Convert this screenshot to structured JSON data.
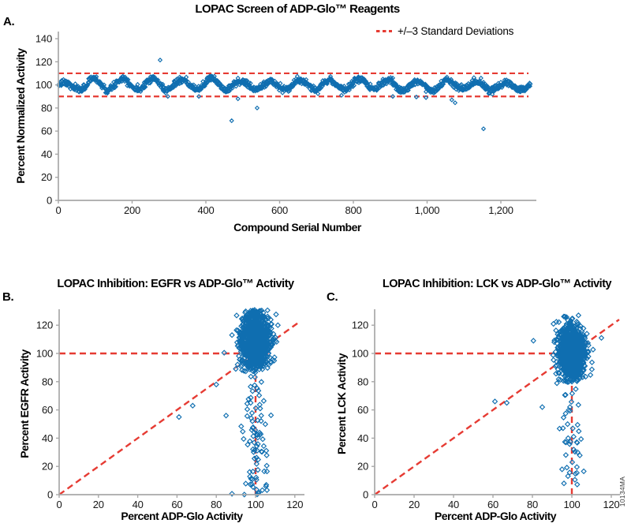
{
  "watermark": "10134MA",
  "colors": {
    "marker_stroke": "#0f6eb0",
    "reference_dash": "#e63b33",
    "axis_line": "#a8a8a8",
    "text": "#111111"
  },
  "chart_data": [
    {
      "id": "a",
      "type": "scatter",
      "panel_label": "A.",
      "title": "LOPAC Screen of ADP-Glo™ Reagents",
      "xlabel": "Compound Serial Number",
      "ylabel": "Percent Normalized Activity",
      "legend": {
        "label": "+/–3 Standard Deviations",
        "style": "red-dashed-line"
      },
      "xlim": [
        0,
        1290
      ],
      "ylim": [
        0,
        145
      ],
      "xticks": [
        0,
        200,
        400,
        600,
        800,
        1000,
        1200
      ],
      "xtick_labels": [
        "0",
        "200",
        "400",
        "600",
        "800",
        "1,000",
        "1,200"
      ],
      "yticks": [
        0,
        20,
        40,
        60,
        80,
        100,
        120,
        140
      ],
      "marker": "open-diamond",
      "ref_lines": [
        {
          "type": "h",
          "y": 110,
          "x_from": 0,
          "x_to": 1275
        },
        {
          "type": "h",
          "y": 90,
          "x_from": 0,
          "x_to": 1275
        }
      ],
      "series_spec": {
        "kind": "oscillating-band",
        "n": 1280,
        "mean": 100,
        "wave_amplitude": 4.2,
        "wave_period": 80,
        "noise_sd": 1.4,
        "clip": [
          91.5,
          107.5
        ],
        "seed": 7
      },
      "outliers": [
        [
          276,
          121.5
        ],
        [
          470,
          69
        ],
        [
          539,
          80
        ],
        [
          1153,
          62
        ],
        [
          297,
          90
        ],
        [
          381,
          90
        ],
        [
          487,
          88
        ],
        [
          768,
          91
        ],
        [
          907,
          90
        ],
        [
          971,
          89.5
        ],
        [
          997,
          89
        ],
        [
          1067,
          87
        ],
        [
          1076,
          84.5
        ]
      ]
    },
    {
      "id": "b",
      "type": "scatter",
      "panel_label": "B.",
      "title": "LOPAC Inhibition: EGFR vs ADP-Glo™ Activity",
      "xlabel": "Percent ADP-Glo Activity",
      "ylabel": "Percent EGFR Activity",
      "xlim": [
        0,
        128
      ],
      "ylim": [
        0,
        132
      ],
      "xticks": [
        0,
        20,
        40,
        60,
        80,
        100,
        120
      ],
      "xtick_labels": [
        "0",
        "20",
        "40",
        "60",
        "80",
        "100",
        "120"
      ],
      "yticks": [
        0,
        20,
        40,
        60,
        80,
        100,
        120
      ],
      "marker": "open-diamond",
      "ref_lines": [
        {
          "type": "h",
          "y": 100,
          "x_from": 0,
          "x_to": 107
        },
        {
          "type": "v",
          "x": 100,
          "y_from": 0,
          "y_to": 100
        },
        {
          "type": "diag",
          "from": [
            0,
            0
          ],
          "to": [
            122,
            122
          ]
        }
      ],
      "cluster_spec": {
        "n": 1080,
        "cx": 100,
        "sx": 3.6,
        "x_clip": [
          89,
          112
        ],
        "cy": 108,
        "sy": 11,
        "y_clip": [
          86.5,
          131
        ],
        "seed": 11
      },
      "tail_spec": {
        "n": 85,
        "cx": 100.5,
        "sx": 3.2,
        "x_clip": [
          90,
          110
        ],
        "y_range": [
          0,
          86
        ],
        "seed": 12
      },
      "outliers": [
        [
          61,
          55
        ],
        [
          68,
          63
        ],
        [
          85,
          56
        ],
        [
          80,
          78
        ],
        [
          84,
          100.5
        ],
        [
          88,
          113
        ],
        [
          88,
          0.6
        ]
      ]
    },
    {
      "id": "c",
      "type": "scatter",
      "panel_label": "C.",
      "title": "LOPAC Inhibition: LCK vs ADP-Glo™ Activity",
      "xlabel": "Percent ADP-Glo Activity",
      "ylabel": "Percent LCK Activity",
      "xlim": [
        0,
        128
      ],
      "ylim": [
        0,
        132
      ],
      "xticks": [
        0,
        20,
        40,
        60,
        80,
        100,
        120
      ],
      "xtick_labels": [
        "0",
        "20",
        "40",
        "60",
        "80",
        "100",
        "120"
      ],
      "yticks": [
        0,
        20,
        40,
        60,
        80,
        100,
        120
      ],
      "marker": "open-diamond",
      "ref_lines": [
        {
          "type": "h",
          "y": 100,
          "x_from": 0,
          "x_to": 105
        },
        {
          "type": "v",
          "x": 100,
          "y_from": 0,
          "y_to": 100
        },
        {
          "type": "diag",
          "from": [
            0,
            0
          ],
          "to": [
            124,
            124
          ]
        }
      ],
      "cluster_spec": {
        "n": 1150,
        "cx": 100,
        "sx": 3.3,
        "x_clip": [
          89,
          111.5
        ],
        "cy": 101,
        "sy": 9.5,
        "y_clip": [
          78.5,
          127.5
        ],
        "seed": 21
      },
      "tail_spec": {
        "n": 42,
        "cx": 100,
        "sx": 2.7,
        "x_clip": [
          92,
          108
        ],
        "y_range": [
          7,
          78
        ],
        "seed": 22
      },
      "outliers": [
        [
          61,
          66
        ],
        [
          67,
          65
        ],
        [
          85,
          62
        ],
        [
          80.5,
          109
        ],
        [
          115,
          111
        ],
        [
          96,
          8
        ]
      ]
    }
  ]
}
